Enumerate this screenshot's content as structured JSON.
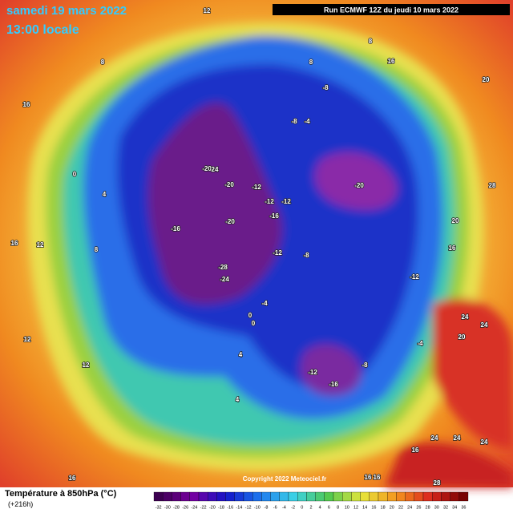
{
  "header": {
    "date": "samedi 19 mars 2022",
    "time": "13:00 locale",
    "run": "Run ECMWF 12Z du jeudi 10 mars 2022"
  },
  "copyright": "Copyright 2022 Meteociel.fr",
  "footer": {
    "title": "Température à 850hPa (°C)",
    "lead": "(+216h)"
  },
  "colorbar": {
    "ticks": [
      -32,
      -30,
      -28,
      -26,
      -24,
      -22,
      -20,
      -18,
      -16,
      -14,
      -12,
      -10,
      -8,
      -6,
      -4,
      -2,
      0,
      2,
      4,
      6,
      8,
      10,
      12,
      14,
      16,
      18,
      20,
      22,
      24,
      26,
      28,
      30,
      32,
      34,
      36
    ]
  },
  "map_labels": [
    "12",
    "8",
    "16",
    "8",
    "8",
    "16",
    "20",
    "-8",
    "-8",
    "-4",
    "-20",
    "24",
    "-20",
    "-12",
    "-12",
    "-12",
    "-16",
    "-20",
    "28",
    "0",
    "4",
    "-20",
    "-16",
    "-12",
    "-8",
    "-28",
    "-24",
    "-12",
    "16",
    "12",
    "20",
    "16",
    "24",
    "24",
    "20",
    "-4",
    "-4",
    "0",
    "0",
    "4",
    "-12",
    "-8",
    "-16",
    "4",
    "12",
    "12",
    "24",
    "24",
    "24",
    "16",
    "16",
    "16",
    "28",
    "16",
    "8"
  ]
}
